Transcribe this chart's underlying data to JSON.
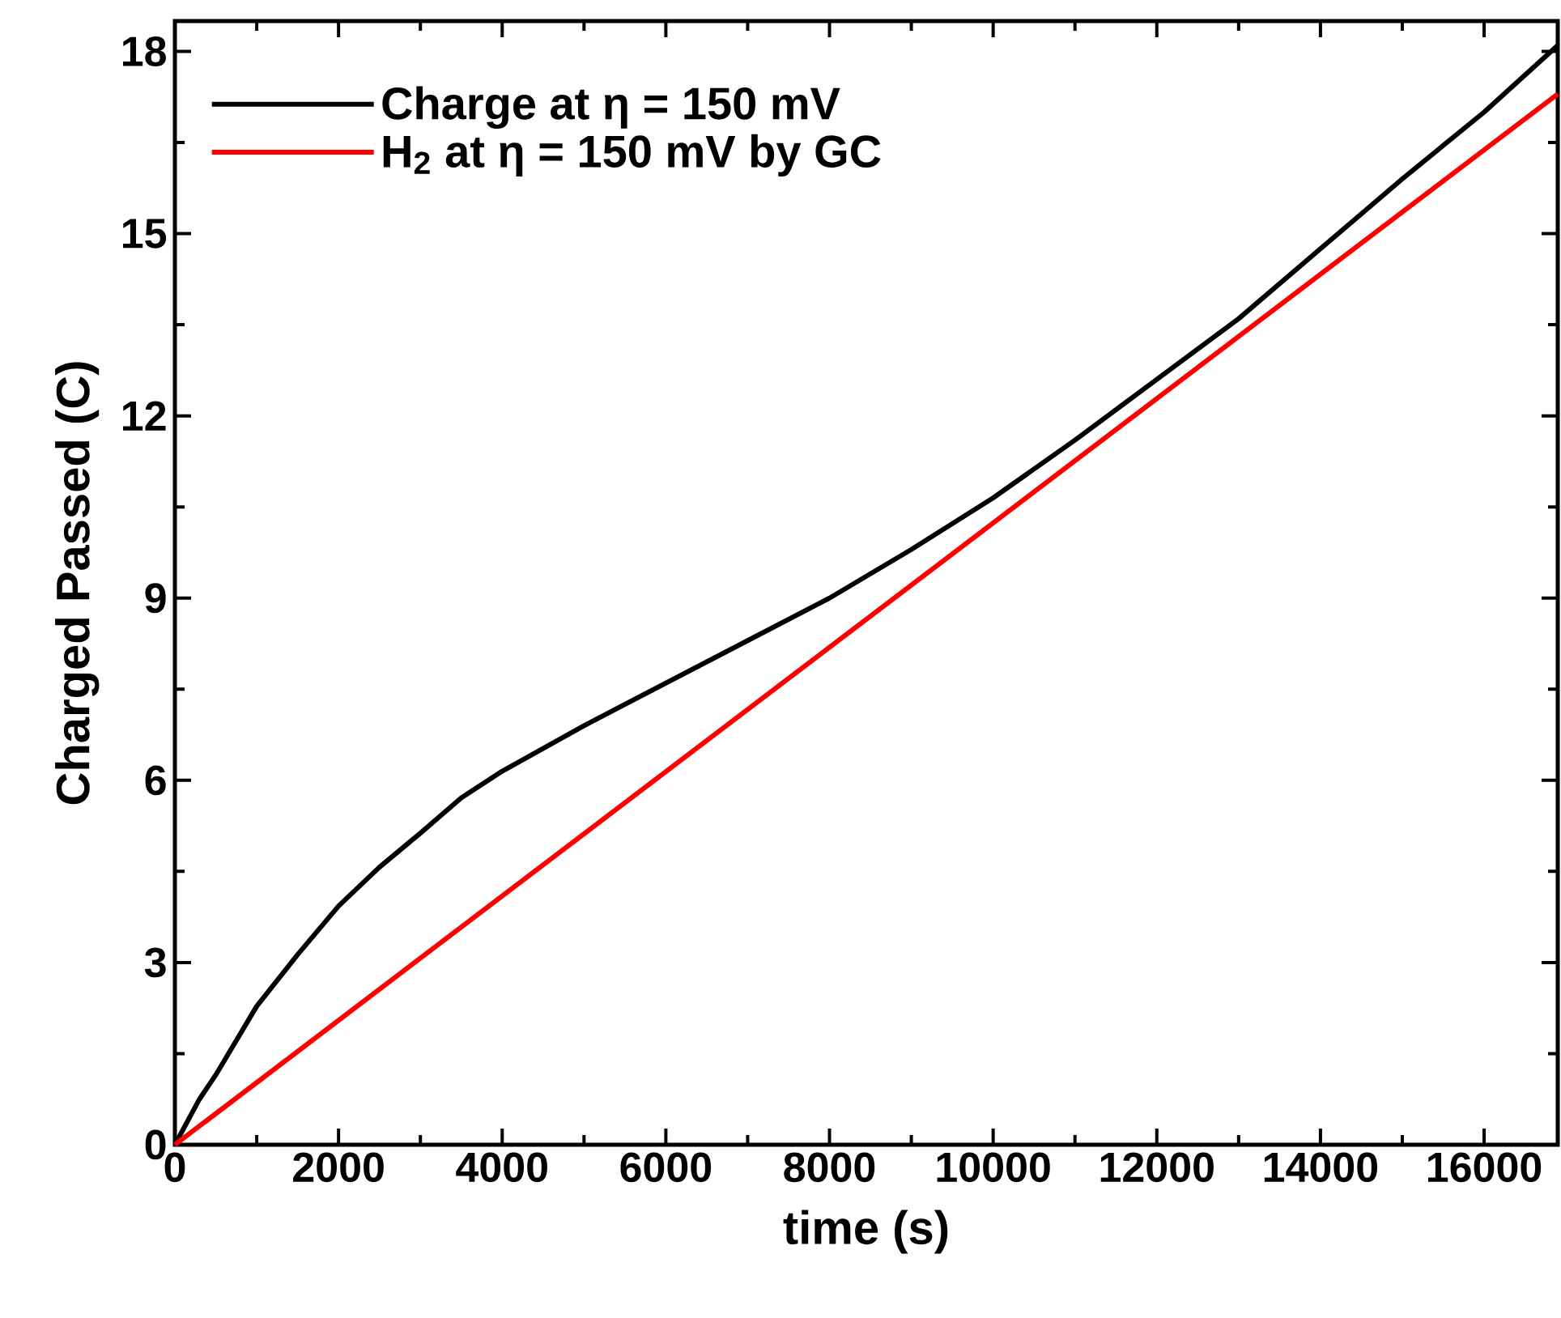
{
  "chart_data": {
    "type": "line",
    "xlabel": "time (s)",
    "ylabel": "Charged Passed (C)",
    "xlim": [
      0,
      16900
    ],
    "ylim": [
      0,
      18.5
    ],
    "xticks": [
      0,
      2000,
      4000,
      6000,
      8000,
      10000,
      12000,
      14000,
      16000
    ],
    "yticks": [
      0,
      3,
      6,
      9,
      12,
      15,
      18
    ],
    "legend": "top left",
    "marker": "none",
    "line_style": "solid",
    "grid": false,
    "series": [
      {
        "name": "Charge at η  = 150 mV",
        "color": "#000000",
        "x": [
          0,
          300,
          500,
          1000,
          1500,
          2000,
          2500,
          3000,
          3500,
          4000,
          5000,
          6000,
          7000,
          8000,
          9000,
          10000,
          11000,
          12000,
          13000,
          14000,
          15000,
          16000,
          16900
        ],
        "values": [
          0,
          0.75,
          1.15,
          2.28,
          3.13,
          3.93,
          4.57,
          5.13,
          5.71,
          6.15,
          6.9,
          7.6,
          8.3,
          9.0,
          9.8,
          10.65,
          11.6,
          12.6,
          13.6,
          14.75,
          15.9,
          17.0,
          18.1
        ]
      },
      {
        "name": "H$_{2}$ at η  = 150 mV by GC",
        "color": "#ff0000",
        "x": [
          0,
          16900
        ],
        "values": [
          0,
          17.3
        ]
      }
    ]
  }
}
